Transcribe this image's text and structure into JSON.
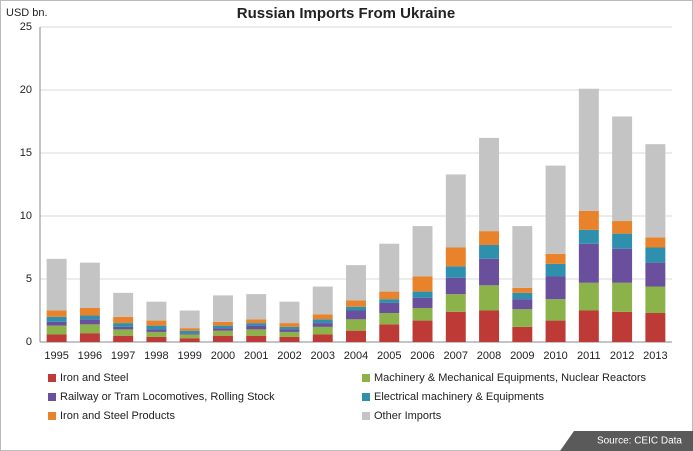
{
  "chart_data": {
    "type": "stacked-bar",
    "title": "Russian Imports From Ukraine",
    "y_label": "USD bn.",
    "source": "Source: CEIC Data",
    "categories": [
      "1995",
      "1996",
      "1997",
      "1998",
      "1999",
      "2000",
      "2001",
      "2002",
      "2003",
      "2004",
      "2005",
      "2006",
      "2007",
      "2008",
      "2009",
      "2010",
      "2011",
      "2012",
      "2013"
    ],
    "series": [
      {
        "name": "Iron and Steel",
        "color": "#bd3a36",
        "values": [
          0.6,
          0.7,
          0.5,
          0.4,
          0.3,
          0.5,
          0.5,
          0.4,
          0.6,
          0.9,
          1.4,
          1.7,
          2.4,
          2.5,
          1.2,
          1.7,
          2.5,
          2.4,
          2.3
        ]
      },
      {
        "name": "Machinery & Mechanical Equipments, Nuclear Reactors",
        "color": "#8cb34a",
        "values": [
          0.7,
          0.7,
          0.5,
          0.4,
          0.3,
          0.4,
          0.5,
          0.4,
          0.6,
          0.9,
          0.9,
          1.0,
          1.4,
          2.0,
          1.4,
          1.7,
          2.2,
          2.3,
          2.1
        ]
      },
      {
        "name": "Railway or Tram Locomotives, Rolling Stock",
        "color": "#6a4f9d",
        "values": [
          0.3,
          0.4,
          0.2,
          0.2,
          0.1,
          0.2,
          0.3,
          0.2,
          0.3,
          0.7,
          0.8,
          0.8,
          1.3,
          2.1,
          0.8,
          1.8,
          3.1,
          2.7,
          1.9
        ]
      },
      {
        "name": "Electrical machinery & Equipments",
        "color": "#2f90ad",
        "values": [
          0.4,
          0.3,
          0.3,
          0.3,
          0.2,
          0.2,
          0.2,
          0.2,
          0.3,
          0.3,
          0.3,
          0.5,
          0.9,
          1.1,
          0.5,
          1.0,
          1.1,
          1.2,
          1.2
        ]
      },
      {
        "name": "Iron and Steel Products",
        "color": "#e8832b",
        "values": [
          0.5,
          0.6,
          0.5,
          0.4,
          0.2,
          0.3,
          0.3,
          0.3,
          0.4,
          0.5,
          0.6,
          1.2,
          1.5,
          1.1,
          0.4,
          0.8,
          1.5,
          1.0,
          0.8
        ]
      },
      {
        "name": "Other Imports",
        "color": "#c4c4c4",
        "values": [
          4.1,
          3.6,
          1.9,
          1.5,
          1.4,
          2.1,
          2.0,
          1.7,
          2.2,
          2.8,
          3.8,
          4.0,
          5.8,
          7.4,
          4.9,
          7.0,
          9.7,
          8.3,
          7.4
        ]
      }
    ],
    "ylim": [
      0,
      25
    ],
    "yticks": [
      0,
      5,
      10,
      15,
      20,
      25
    ],
    "grid": true
  }
}
